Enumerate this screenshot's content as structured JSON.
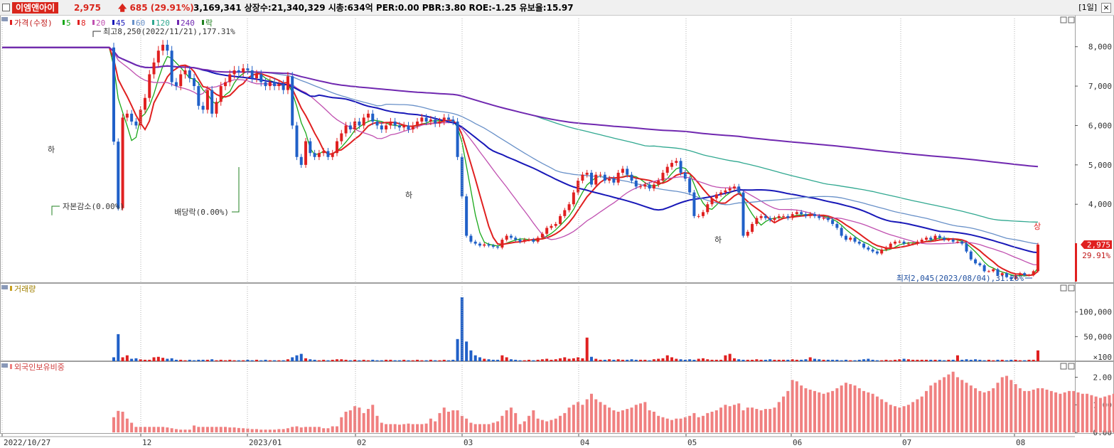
{
  "header": {
    "stock_name": "이엠앤아이",
    "price": "2,975",
    "change": "685",
    "change_pct": "(29.91%)",
    "info": "3,169,341  상장수:21,340,329 시총:634억  PER:0.00  PBR:3.80  ROE:-1.25  유보율:15.97",
    "period": "[1일]",
    "close_symbol": "×"
  },
  "legend": {
    "price_label": "가격(수정)",
    "ma_items": [
      {
        "label": "5",
        "color": "#1aa81a"
      },
      {
        "label": "8",
        "color": "#e02020"
      },
      {
        "label": "20",
        "color": "#c050b0"
      },
      {
        "label": "45",
        "color": "#1818b8"
      },
      {
        "label": "60",
        "color": "#6890c8"
      },
      {
        "label": "120",
        "color": "#30a890"
      },
      {
        "label": "240",
        "color": "#7028b0"
      },
      {
        "label": "락",
        "color": "#208020"
      }
    ]
  },
  "annotations": {
    "high": "최고8,250(2022/11/21),177.31%",
    "low": "최저2,045(2023/08/04),31.26%",
    "capital_reduction": "자본감소(0.00%)",
    "dividend_ex": "배당락(0.00%)",
    "limit_down": "하",
    "limit_up": "상"
  },
  "last_price": {
    "value": "2,975",
    "pct": "29.91%"
  },
  "panels": {
    "volume_title": "거래량",
    "foreign_title": "외국인보유비중",
    "volume_unit": "×100"
  },
  "colors": {
    "up": "#e02020",
    "down": "#2060c8",
    "volume_up": "#e02020",
    "volume_down": "#2060c8",
    "foreign": "#f08080"
  },
  "chart_data": [
    {
      "type": "candlestick",
      "title": "가격(수정)",
      "x_ticks": [
        "2022/10/27",
        "12",
        "2023/01",
        "02",
        "03",
        "04",
        "05",
        "06",
        "07",
        "08"
      ],
      "y_ticks": [
        "8,000",
        "7,000",
        "6,000",
        "5,000",
        "4,000"
      ],
      "ylim": [
        2000,
        8500
      ],
      "close": [
        7980,
        7980,
        7980,
        7980,
        7980,
        7980,
        7980,
        7980,
        7980,
        7980,
        7980,
        7980,
        7980,
        7980,
        7980,
        7980,
        7980,
        7980,
        7980,
        7980,
        7980,
        7980,
        7980,
        7980,
        7980,
        5590,
        3900,
        6200,
        6300,
        6100,
        6000,
        6400,
        6700,
        7300,
        7600,
        7900,
        8050,
        7900,
        7100,
        7000,
        7300,
        7400,
        7200,
        7000,
        6500,
        6400,
        6900,
        6300,
        6600,
        7000,
        7100,
        7300,
        7400,
        7350,
        7450,
        7400,
        7200,
        7300,
        7100,
        7000,
        7100,
        7000,
        7050,
        6900,
        7250,
        6000,
        5200,
        5000,
        5600,
        5300,
        5200,
        5300,
        5350,
        5200,
        5300,
        5600,
        5800,
        6000,
        5900,
        6100,
        6000,
        6200,
        6300,
        6100,
        6000,
        5900,
        6000,
        6100,
        6000,
        5950,
        6000,
        5900,
        6000,
        6100,
        6200,
        6100,
        6150,
        6050,
        6100,
        6200,
        6150,
        6100,
        5200,
        4200,
        3200,
        3050,
        3000,
        2950,
        2980,
        2950,
        2920,
        2900,
        3100,
        3200,
        3150,
        3100,
        3050,
        3100,
        3100,
        3050,
        3150,
        3250,
        3400,
        3450,
        3500,
        3700,
        3850,
        4000,
        4300,
        4600,
        4750,
        4800,
        4500,
        4750,
        4750,
        4600,
        4650,
        4550,
        4800,
        4900,
        4750,
        4600,
        4450,
        4450,
        4500,
        4400,
        4500,
        4600,
        4800,
        4950,
        5050,
        5100,
        4800,
        4650,
        4300,
        3700,
        3700,
        3800,
        4000,
        4150,
        4250,
        4300,
        4350,
        4400,
        4450,
        4300,
        3200,
        3300,
        3500,
        3650,
        3700,
        3650,
        3600,
        3650,
        3700,
        3700,
        3650,
        3750,
        3800,
        3750,
        3700,
        3750,
        3700,
        3650,
        3650,
        3600,
        3500,
        3400,
        3200,
        3100,
        3150,
        3050,
        3000,
        2900,
        2850,
        2800,
        2750,
        2850,
        2900,
        3000,
        3050,
        3050,
        3000,
        3000,
        3000,
        3050,
        3100,
        3150,
        3100,
        3200,
        3150,
        3100,
        3100,
        3050,
        3050,
        3000,
        2800,
        2600,
        2500,
        2450,
        2300,
        2300,
        2350,
        2200,
        2250,
        2150,
        2100,
        2200,
        2250,
        2200,
        2200,
        2300,
        2975
      ],
      "last": "2,975",
      "high_label": "최고8,250(2022/11/21),177.31%",
      "low_label": "최저2,045(2023/08/04),31.26%",
      "moving_averages": [
        {
          "name": "5",
          "color": "#1aa81a"
        },
        {
          "name": "8",
          "color": "#e02020"
        },
        {
          "name": "20",
          "color": "#c050b0"
        },
        {
          "name": "45",
          "color": "#1818b8"
        },
        {
          "name": "60",
          "color": "#6890c8"
        },
        {
          "name": "120",
          "color": "#30a890"
        },
        {
          "name": "240",
          "color": "#7028b0"
        }
      ]
    },
    {
      "type": "bar",
      "title": "거래량",
      "y_ticks": [
        "100,000",
        "50,000"
      ],
      "unit": "×100",
      "ylim": [
        0,
        140000
      ],
      "values": [
        0,
        0,
        0,
        0,
        0,
        0,
        0,
        0,
        0,
        0,
        0,
        0,
        0,
        0,
        0,
        0,
        0,
        0,
        0,
        0,
        0,
        0,
        0,
        0,
        0,
        8000,
        55000,
        8000,
        12000,
        5000,
        6000,
        4000,
        3000,
        3000,
        8000,
        9000,
        7000,
        5000,
        6000,
        3000,
        3000,
        2000,
        3000,
        2000,
        3000,
        3000,
        3000,
        4000,
        2000,
        3000,
        2000,
        3000,
        2000,
        2000,
        2000,
        3000,
        2000,
        3000,
        2000,
        3000,
        2000,
        2000,
        2000,
        2000,
        4000,
        8000,
        12000,
        15000,
        6000,
        4000,
        3000,
        2000,
        3000,
        2000,
        3000,
        4000,
        4000,
        3000,
        2000,
        3000,
        2000,
        3000,
        2000,
        3000,
        2000,
        2000,
        3000,
        3000,
        2000,
        2000,
        3000,
        2000,
        2000,
        3000,
        2000,
        2000,
        3000,
        2000,
        2000,
        3000,
        2000,
        3000,
        45000,
        130000,
        40000,
        22000,
        12000,
        8000,
        5000,
        4000,
        3000,
        3000,
        12000,
        8000,
        4000,
        3000,
        2000,
        2000,
        3000,
        2000,
        3000,
        4000,
        5000,
        3000,
        4000,
        6000,
        8000,
        5000,
        6000,
        8000,
        6000,
        48000,
        9000,
        5000,
        3000,
        3000,
        4000,
        3000,
        4000,
        3000,
        3000,
        4000,
        3000,
        3000,
        3000,
        2000,
        4000,
        5000,
        6000,
        12000,
        8000,
        5000,
        4000,
        3000,
        4000,
        3000,
        5000,
        6000,
        4000,
        3000,
        3000,
        3000,
        12000,
        15000,
        6000,
        4000,
        3000,
        3000,
        3000,
        4000,
        3000,
        3000,
        4000,
        3000,
        3000,
        3000,
        3000,
        4000,
        3000,
        3000,
        4000,
        8000,
        5000,
        4000,
        3000,
        3000,
        3000,
        3000,
        2000,
        3000,
        2000,
        2000,
        3000,
        4000,
        5000,
        3000,
        2000,
        2000,
        3000,
        2000,
        3000,
        4000,
        5000,
        4000,
        3000,
        3000,
        3000,
        3000,
        3000,
        3000,
        3000,
        2000,
        3000,
        3000,
        12000,
        3000,
        4000,
        3000,
        4000,
        3000,
        2000,
        3000,
        2000,
        3000,
        3000,
        2000,
        3000,
        3000,
        2000,
        2000,
        3000,
        3000,
        22000
      ]
    },
    {
      "type": "bar",
      "title": "외국인보유비중",
      "y_ticks": [
        "2.00",
        "1.00",
        "0.00"
      ],
      "ylim": [
        -0.05,
        2.45
      ],
      "values": [
        0,
        0,
        0,
        0,
        0,
        0,
        0,
        0,
        0,
        0,
        0,
        0,
        0,
        0,
        0,
        0,
        0,
        0,
        0,
        0,
        0,
        0,
        0,
        0,
        0,
        0.55,
        0.78,
        0.75,
        0.5,
        0.35,
        0.2,
        0.2,
        0.2,
        0.2,
        0.2,
        0.2,
        0.2,
        0.18,
        0.15,
        0.12,
        0.1,
        0.1,
        0.1,
        0.25,
        0.2,
        0.2,
        0.2,
        0.2,
        0.2,
        0.2,
        0.2,
        0.18,
        0.18,
        0.16,
        0.15,
        0.14,
        0.12,
        0.12,
        0.1,
        0.1,
        0.1,
        0.1,
        0.12,
        0.12,
        0.15,
        0.2,
        0.22,
        0.18,
        0.2,
        0.2,
        0.2,
        0.2,
        0.15,
        0.15,
        0.22,
        0.22,
        0.55,
        0.75,
        0.8,
        0.95,
        0.9,
        0.7,
        0.85,
        1.0,
        0.6,
        0.35,
        0.3,
        0.3,
        0.3,
        0.28,
        0.3,
        0.32,
        0.3,
        0.3,
        0.3,
        0.32,
        0.5,
        0.4,
        0.7,
        0.9,
        0.75,
        0.8,
        0.8,
        0.6,
        0.5,
        0.35,
        0.3,
        0.3,
        0.3,
        0.3,
        0.35,
        0.4,
        0.6,
        0.8,
        0.9,
        0.7,
        0.3,
        0.4,
        0.6,
        0.8,
        0.5,
        0.45,
        0.4,
        0.45,
        0.5,
        0.6,
        0.7,
        0.9,
        1.0,
        1.1,
        1.0,
        1.2,
        1.4,
        1.2,
        1.1,
        1.0,
        0.9,
        0.8,
        0.75,
        0.8,
        0.85,
        0.9,
        1.0,
        1.05,
        1.1,
        0.8,
        0.75,
        0.6,
        0.55,
        0.5,
        0.45,
        0.5,
        0.5,
        0.55,
        0.6,
        0.7,
        0.55,
        0.6,
        0.7,
        0.75,
        0.8,
        0.9,
        1.0,
        0.95,
        1.0,
        1.05,
        0.8,
        0.9,
        0.9,
        0.85,
        0.8,
        0.85,
        0.85,
        0.9,
        1.1,
        1.3,
        1.5,
        1.9,
        1.85,
        1.7,
        1.6,
        1.55,
        1.5,
        1.45,
        1.4,
        1.45,
        1.5,
        1.6,
        1.7,
        1.8,
        1.75,
        1.7,
        1.6,
        1.5,
        1.45,
        1.4,
        1.3,
        1.2,
        1.1,
        1.0,
        0.95,
        0.9,
        0.95,
        1.0,
        1.1,
        1.2,
        1.3,
        1.5,
        1.7,
        1.8,
        1.9,
        2.0,
        2.1,
        2.2,
        2.0,
        1.9,
        1.8,
        1.7,
        1.6,
        1.5,
        1.45,
        1.5,
        1.6,
        1.8,
        2.0,
        2.05,
        1.9,
        1.75,
        1.6,
        1.5,
        1.5,
        1.55,
        1.6,
        1.6,
        1.55,
        1.5,
        1.45,
        1.4,
        1.45,
        1.5,
        1.5,
        1.45,
        1.4,
        1.4,
        1.35,
        1.3,
        1.25,
        1.3,
        1.35,
        1.4,
        1.45,
        1.5,
        1.55,
        1.6
      ]
    }
  ]
}
